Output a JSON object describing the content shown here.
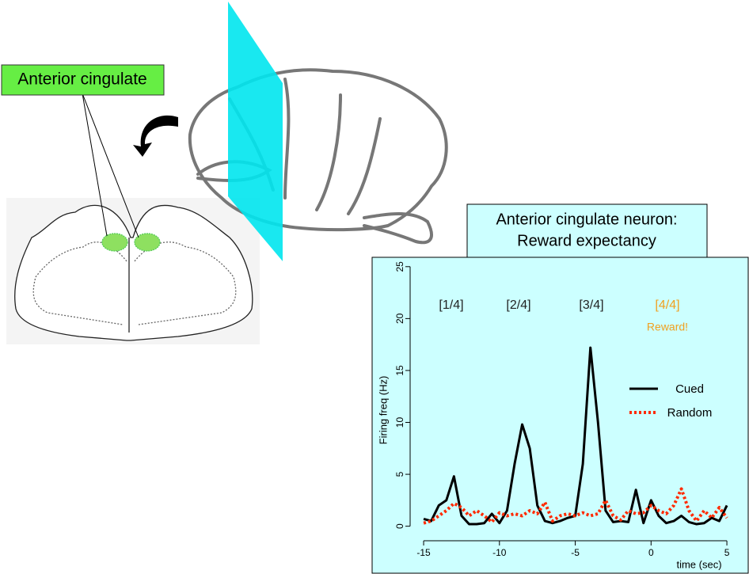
{
  "brain_label": "Anterior cingulate",
  "chart_data": {
    "type": "line",
    "title": "Anterior cingulate neuron:",
    "subtitle": "Reward expectancy",
    "x_label": "time (sec)",
    "y_label": "Firing freq (Hz)",
    "x": [
      -15,
      -14.5,
      -14,
      -13.5,
      -13,
      -12.5,
      -12,
      -11.5,
      -11,
      -10.5,
      -10,
      -9.5,
      -9,
      -8.5,
      -8,
      -7.5,
      -7,
      -6.5,
      -6,
      -5.5,
      -5,
      -4.5,
      -4,
      -3.5,
      -3,
      -2.5,
      -2,
      -1.5,
      -1,
      -0.5,
      0,
      0.5,
      1,
      1.5,
      2,
      2.5,
      3,
      3.5,
      4,
      4.5,
      5
    ],
    "series": [
      {
        "name": "Cued",
        "color": "#000000",
        "dash": "solid",
        "values": [
          0.7,
          0.5,
          2,
          2.5,
          4.8,
          1,
          0.2,
          0.2,
          0.3,
          1.2,
          0.3,
          1.5,
          6,
          9.8,
          7.5,
          2,
          0.5,
          0.3,
          0.5,
          0.8,
          1,
          6,
          17.2,
          10,
          1.5,
          0.4,
          0.5,
          0.4,
          3.5,
          0.3,
          2.5,
          1,
          0.3,
          0.5,
          1,
          0.4,
          0.2,
          0.3,
          0.8,
          0.5,
          2
        ]
      },
      {
        "name": "Random",
        "color": "#ff2a00",
        "dash": "dotted",
        "values": [
          0.3,
          0.5,
          1,
          1.5,
          2.2,
          1.8,
          1,
          1.5,
          1,
          0.4,
          1.3,
          1,
          1.2,
          1,
          1.5,
          1.2,
          2.3,
          0.5,
          1,
          1.2,
          1,
          1.3,
          1,
          1.2,
          2.5,
          1,
          0.6,
          1.5,
          1.2,
          1.3,
          2,
          1.5,
          1.2,
          2,
          3.6,
          1.5,
          0.5,
          1.5,
          0.8,
          1.8,
          0.8
        ]
      }
    ],
    "xlim": [
      -15.89,
      5.78
    ],
    "ylim": [
      -1.4,
      25.9
    ],
    "xticks": [
      -15,
      -10,
      -5,
      0,
      5
    ],
    "yticks": [
      0,
      5,
      10,
      15,
      20,
      25
    ],
    "legend": "right",
    "annotations": [
      {
        "text": "[1/4]",
        "color": "#222222"
      },
      {
        "text": "[2/4]",
        "color": "#222222"
      },
      {
        "text": "[3/4]",
        "color": "#222222"
      },
      {
        "text": "[4/4]",
        "color": "#f0a020"
      },
      {
        "text": "Reward!",
        "color": "#f0a020"
      }
    ]
  }
}
